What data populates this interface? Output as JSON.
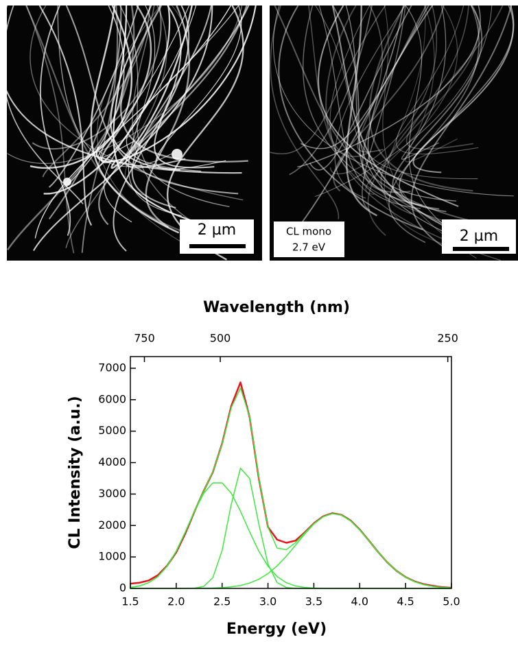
{
  "images": [
    {
      "scale_bar": "2 µm"
    },
    {
      "scale_bar": "2 µm",
      "labels": [
        "CL mono",
        "2.7 eV"
      ]
    }
  ],
  "chart_data": {
    "type": "line",
    "x2label": "Wavelength (nm)",
    "xlabel": "Energy (eV)",
    "ylabel": "CL Intensity (a.u.)",
    "x": [
      1.5,
      1.6,
      1.7,
      1.8,
      1.9,
      2.0,
      2.1,
      2.2,
      2.3,
      2.4,
      2.5,
      2.6,
      2.7,
      2.8,
      2.9,
      3.0,
      3.1,
      3.2,
      3.3,
      3.4,
      3.5,
      3.6,
      3.7,
      3.8,
      3.9,
      4.0,
      4.1,
      4.2,
      4.3,
      4.4,
      4.5,
      4.6,
      4.7,
      4.8,
      4.9,
      5.0
    ],
    "xlim": [
      1.5,
      5
    ],
    "xticks": [
      1.5,
      {
        "value": 2,
        "label": "2.0"
      },
      2.5,
      {
        "value": 3,
        "label": "3.0"
      },
      3.5,
      {
        "value": 4,
        "label": "4.0"
      },
      4.5,
      {
        "value": 5,
        "label": "5.0"
      }
    ],
    "ylim": [
      0,
      7370
    ],
    "yticks": [
      0,
      1000,
      2000,
      3000,
      4000,
      5000,
      6000,
      7000
    ],
    "x2lim": [
      826.67,
      248
    ],
    "x2scale": "reciprocal",
    "x2ticks": [
      750,
      500,
      250
    ],
    "series": [
      {
        "color": "#e8141c",
        "width": 2.5,
        "values": [
          150,
          180,
          250,
          420,
          720,
          1150,
          1750,
          2450,
          3100,
          3700,
          4600,
          5800,
          6550,
          5450,
          3500,
          1950,
          1550,
          1450,
          1520,
          1780,
          2070,
          2290,
          2390,
          2340,
          2160,
          1870,
          1520,
          1160,
          830,
          560,
          360,
          220,
          130,
          80,
          40,
          20
        ]
      },
      {
        "color": "#3de83d",
        "width": 1.5,
        "values": [
          31,
          79,
          182,
          377,
          704,
          1185,
          1798,
          2456,
          3025,
          3356,
          3356,
          3025,
          2456,
          1798,
          1185,
          704,
          377,
          182,
          79,
          31,
          11,
          3,
          1,
          0,
          0,
          0,
          0,
          0,
          0,
          0,
          0,
          0,
          0,
          0,
          0,
          0
        ]
      },
      {
        "color": "#3de83d",
        "width": 1.5,
        "values": [
          0,
          0,
          0,
          0,
          0,
          0,
          1,
          8,
          64,
          347,
          1203,
          2678,
          3822,
          3498,
          2052,
          772,
          186,
          29,
          3,
          0,
          0,
          0,
          0,
          0,
          0,
          0,
          0,
          0,
          0,
          0,
          0,
          0,
          0,
          0,
          0,
          0
        ]
      },
      {
        "color": "#3de83d",
        "width": 1.5,
        "values": [
          0,
          0,
          0,
          0,
          0,
          0,
          1,
          2,
          4,
          10,
          23,
          47,
          92,
          169,
          291,
          471,
          716,
          1022,
          1372,
          1728,
          2046,
          2275,
          2377,
          2333,
          2151,
          1863,
          1516,
          1158,
          832,
          561,
          355,
          212,
          118,
          62,
          31,
          14
        ]
      },
      {
        "color": "#3de83d",
        "width": 1.5,
        "values": [
          31,
          79,
          182,
          377,
          704,
          1185,
          1799,
          2466,
          3093,
          3713,
          4582,
          5750,
          6370,
          5465,
          3528,
          1947,
          1279,
          1233,
          1454,
          1759,
          2057,
          2278,
          2378,
          2333,
          2151,
          1863,
          1516,
          1158,
          832,
          561,
          355,
          212,
          118,
          62,
          31,
          14
        ]
      }
    ]
  }
}
